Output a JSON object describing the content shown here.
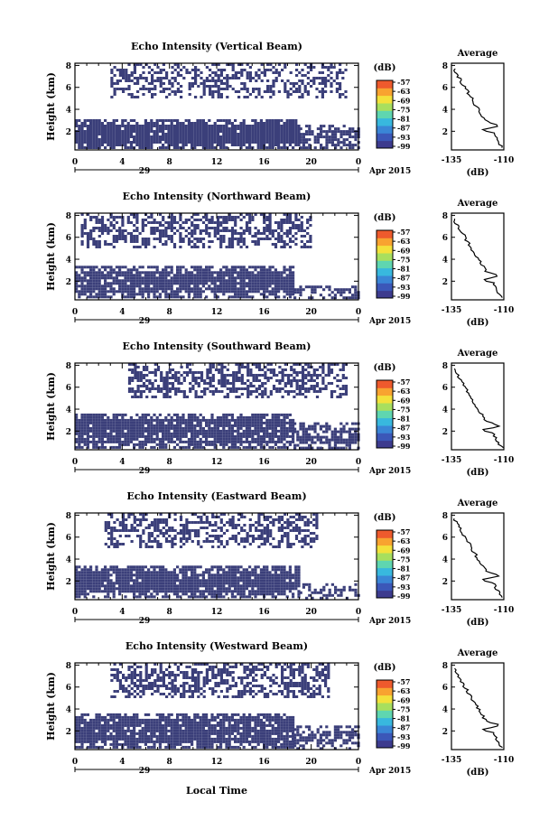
{
  "figure": {
    "xlabel_bottom": "Local Time",
    "date_label": "Apr 2015",
    "day_label": "29",
    "ylabel": "Height (km)",
    "colorbar_unit": "(dB)",
    "avg_title": "Average",
    "avg_xlabel": "(dB)"
  },
  "chart_data": [
    {
      "type": "heatmap",
      "title": "Echo Intensity (Vertical Beam)",
      "xlabel": "",
      "ylabel": "Height (km)",
      "x_ticks": [
        "0",
        "4",
        "8",
        "12",
        "16",
        "20",
        "0"
      ],
      "xlim": [
        0,
        24
      ],
      "y_ticks": [
        "2",
        "4",
        "6",
        "8"
      ],
      "ylim": [
        0.3,
        8.2
      ],
      "colorbar": {
        "label": "(dB)",
        "ticks": [
          "-57",
          "-63",
          "-69",
          "-75",
          "-81",
          "-87",
          "-93",
          "-99"
        ],
        "range": [
          -99,
          -57
        ]
      },
      "regions": [
        {
          "desc": "low layer",
          "t0": 0,
          "t1": 19,
          "h0": 0.4,
          "h1": 3.1,
          "density": 0.97
        },
        {
          "desc": "low layer trailing",
          "t0": 19,
          "t1": 24,
          "h0": 0.4,
          "h1": 2.6,
          "density": 0.75
        },
        {
          "desc": "upper layer",
          "t0": 3,
          "t1": 23,
          "h0": 5.0,
          "h1": 8.2,
          "density": 0.45
        }
      ],
      "average_profile": {
        "xlim": [
          -135,
          -110
        ],
        "x_ticks": [
          "-135",
          "-110"
        ],
        "y_ticks": [
          "2",
          "4",
          "6",
          "8"
        ]
      }
    },
    {
      "type": "heatmap",
      "title": "Echo Intensity (Northward Beam)",
      "xlabel": "",
      "ylabel": "Height (km)",
      "x_ticks": [
        "0",
        "4",
        "8",
        "12",
        "16",
        "20",
        "0"
      ],
      "xlim": [
        0,
        24
      ],
      "y_ticks": [
        "2",
        "4",
        "6",
        "8"
      ],
      "ylim": [
        0.3,
        8.2
      ],
      "colorbar": {
        "label": "(dB)",
        "ticks": [
          "-57",
          "-63",
          "-69",
          "-75",
          "-81",
          "-87",
          "-93",
          "-99"
        ],
        "range": [
          -99,
          -57
        ]
      },
      "regions": [
        {
          "desc": "low layer",
          "t0": 0,
          "t1": 18.5,
          "h0": 0.5,
          "h1": 3.4,
          "density": 0.92
        },
        {
          "desc": "low layer trailing",
          "t0": 18.5,
          "t1": 24,
          "h0": 0.5,
          "h1": 1.6,
          "density": 0.55
        },
        {
          "desc": "upper layer",
          "t0": 0.5,
          "t1": 20,
          "h0": 5.0,
          "h1": 8.2,
          "density": 0.55
        }
      ],
      "average_profile": {
        "xlim": [
          -135,
          -110
        ],
        "x_ticks": [
          "-135",
          "-110"
        ],
        "y_ticks": [
          "2",
          "4",
          "6",
          "8"
        ]
      }
    },
    {
      "type": "heatmap",
      "title": "Echo Intensity (Southward Beam)",
      "xlabel": "",
      "ylabel": "Height (km)",
      "x_ticks": [
        "0",
        "4",
        "8",
        "12",
        "16",
        "20",
        "0"
      ],
      "xlim": [
        0,
        24
      ],
      "y_ticks": [
        "2",
        "4",
        "6",
        "8"
      ],
      "ylim": [
        0.3,
        8.2
      ],
      "colorbar": {
        "label": "(dB)",
        "ticks": [
          "-57",
          "-63",
          "-69",
          "-75",
          "-81",
          "-87",
          "-93",
          "-99"
        ],
        "range": [
          -99,
          -57
        ]
      },
      "regions": [
        {
          "desc": "low layer",
          "t0": 0,
          "t1": 18.5,
          "h0": 0.5,
          "h1": 3.6,
          "density": 0.9
        },
        {
          "desc": "low layer trailing",
          "t0": 18.5,
          "t1": 24,
          "h0": 0.5,
          "h1": 2.8,
          "density": 0.7
        },
        {
          "desc": "upper layer",
          "t0": 4.5,
          "t1": 23,
          "h0": 5.0,
          "h1": 8.2,
          "density": 0.55
        }
      ],
      "average_profile": {
        "xlim": [
          -135,
          -110
        ],
        "x_ticks": [
          "-135",
          "-110"
        ],
        "y_ticks": [
          "2",
          "4",
          "6",
          "8"
        ]
      }
    },
    {
      "type": "heatmap",
      "title": "Echo Intensity (Eastward Beam)",
      "xlabel": "",
      "ylabel": "Height (km)",
      "x_ticks": [
        "0",
        "4",
        "8",
        "12",
        "16",
        "20",
        "0"
      ],
      "xlim": [
        0,
        24
      ],
      "y_ticks": [
        "2",
        "4",
        "6",
        "8"
      ],
      "ylim": [
        0.3,
        8.2
      ],
      "colorbar": {
        "label": "(dB)",
        "ticks": [
          "-57",
          "-63",
          "-69",
          "-75",
          "-81",
          "-87",
          "-93",
          "-99"
        ],
        "range": [
          -99,
          -57
        ]
      },
      "regions": [
        {
          "desc": "low layer",
          "t0": 0,
          "t1": 19,
          "h0": 0.5,
          "h1": 3.4,
          "density": 0.9
        },
        {
          "desc": "low layer trailing",
          "t0": 19,
          "t1": 24,
          "h0": 0.5,
          "h1": 1.8,
          "density": 0.55
        },
        {
          "desc": "upper layer",
          "t0": 2.5,
          "t1": 20.5,
          "h0": 5.2,
          "h1": 8.2,
          "density": 0.5
        }
      ],
      "average_profile": {
        "xlim": [
          -135,
          -110
        ],
        "x_ticks": [
          "-135",
          "-110"
        ],
        "y_ticks": [
          "2",
          "4",
          "6",
          "8"
        ]
      }
    },
    {
      "type": "heatmap",
      "title": "Echo Intensity (Westward Beam)",
      "xlabel": "Local Time",
      "ylabel": "Height (km)",
      "x_ticks": [
        "0",
        "4",
        "8",
        "12",
        "16",
        "20",
        "0"
      ],
      "xlim": [
        0,
        24
      ],
      "y_ticks": [
        "2",
        "4",
        "6",
        "8"
      ],
      "ylim": [
        0.3,
        8.2
      ],
      "colorbar": {
        "label": "(dB)",
        "ticks": [
          "-57",
          "-63",
          "-69",
          "-75",
          "-81",
          "-87",
          "-93",
          "-99"
        ],
        "range": [
          -99,
          -57
        ]
      },
      "regions": [
        {
          "desc": "low layer",
          "t0": 0,
          "t1": 18.5,
          "h0": 0.4,
          "h1": 3.6,
          "density": 0.9
        },
        {
          "desc": "low layer trailing",
          "t0": 18.5,
          "t1": 24,
          "h0": 0.4,
          "h1": 2.5,
          "density": 0.65
        },
        {
          "desc": "upper layer",
          "t0": 3,
          "t1": 21.5,
          "h0": 5.0,
          "h1": 8.2,
          "density": 0.55
        }
      ],
      "average_profile": {
        "xlim": [
          -135,
          -110
        ],
        "x_ticks": [
          "-135",
          "-110"
        ],
        "y_ticks": [
          "2",
          "4",
          "6",
          "8"
        ]
      }
    }
  ],
  "colors": {
    "echo_fill": "#3b3f7a",
    "axis": "#000000",
    "colorbar_stops": [
      "#3d3b8e",
      "#3b57b8",
      "#3a86d6",
      "#38b8de",
      "#5fd6b0",
      "#a8df5e",
      "#f3e13b",
      "#f8a330",
      "#ee5a2d"
    ]
  }
}
